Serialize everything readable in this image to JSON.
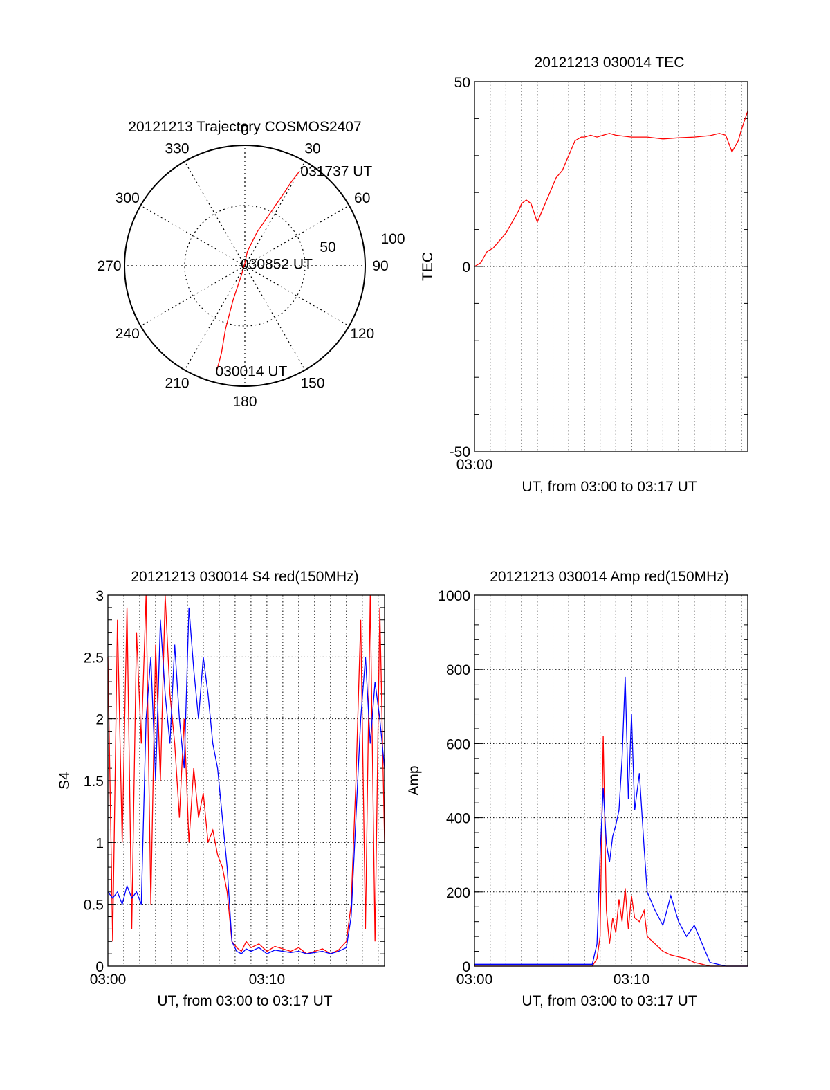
{
  "chart_data": [
    {
      "type": "polar",
      "title": "20121213 Trajectory COSMOS2407",
      "azimuth_labels": [
        "0",
        "30",
        "60",
        "90",
        "120",
        "150",
        "180",
        "210",
        "240",
        "270",
        "300",
        "330"
      ],
      "azimuth_values": [
        0,
        30,
        60,
        90,
        120,
        150,
        180,
        210,
        240,
        270,
        300,
        330
      ],
      "radial_labels": [
        "50",
        "100"
      ],
      "radial_values": [
        50,
        100
      ],
      "radial_max": 100,
      "trajectory_color": "#ff0000",
      "trajectory": [
        {
          "az": 30,
          "r": 90
        },
        {
          "az": 29,
          "r": 80
        },
        {
          "az": 28,
          "r": 65
        },
        {
          "az": 26,
          "r": 50
        },
        {
          "az": 20,
          "r": 30
        },
        {
          "az": 10,
          "r": 12
        },
        {
          "az": 0,
          "r": 2
        },
        {
          "az": 200,
          "r": 8
        },
        {
          "az": 199,
          "r": 30
        },
        {
          "az": 197,
          "r": 55
        },
        {
          "az": 195,
          "r": 75
        },
        {
          "az": 195,
          "r": 90
        }
      ],
      "time_labels": [
        {
          "text": "031737 UT",
          "az": 30,
          "r": 90
        },
        {
          "text": "030852 UT",
          "az": 0,
          "r": 2
        },
        {
          "text": "030014 UT",
          "az": 195,
          "r": 90
        }
      ]
    },
    {
      "type": "line",
      "title": "20121213 030014 TEC",
      "xlabel": "UT, from 03:00 to 03:17 UT",
      "ylabel": "TEC",
      "xlim": [
        0,
        17.4
      ],
      "ylim": [
        -50,
        50
      ],
      "yticks": [
        -50,
        0,
        50
      ],
      "ytick_labels": [
        "-50",
        "0",
        "50"
      ],
      "xtick_labels": [
        {
          "value": 0,
          "label": "03:00"
        }
      ],
      "series": [
        {
          "name": "TEC",
          "color": "#ff0000",
          "x": [
            0,
            0.4,
            0.8,
            1.2,
            1.6,
            2.0,
            2.4,
            2.8,
            3.0,
            3.3,
            3.6,
            4.0,
            4.4,
            4.8,
            5.2,
            5.6,
            6.0,
            6.4,
            6.8,
            7.0,
            7.4,
            7.8,
            8.2,
            8.6,
            9.0,
            10.0,
            11.0,
            12.0,
            13.0,
            14.0,
            15.0,
            15.6,
            16.0,
            16.4,
            16.8,
            17.0,
            17.4
          ],
          "y": [
            0,
            1,
            4,
            5,
            7,
            9,
            12,
            15,
            17,
            18,
            17,
            12,
            16,
            20,
            24,
            26,
            30,
            34,
            35,
            35,
            35.5,
            35,
            35.5,
            36,
            35.5,
            35,
            35,
            34.5,
            34.8,
            35,
            35.4,
            36,
            35.5,
            31,
            34,
            37,
            42
          ]
        }
      ]
    },
    {
      "type": "line",
      "title": "20121213 030014 S4 red(150MHz)",
      "xlabel": "UT, from 03:00 to 03:17 UT",
      "ylabel": "S4",
      "xlim": [
        0,
        17.4
      ],
      "ylim": [
        0,
        3
      ],
      "yticks": [
        0,
        0.5,
        1,
        1.5,
        2,
        2.5,
        3
      ],
      "ytick_labels": [
        "0",
        "0.5",
        "1",
        "1.5",
        "2",
        "2.5",
        "3"
      ],
      "xtick_labels": [
        {
          "value": 0,
          "label": "03:00"
        },
        {
          "value": 10,
          "label": "03:10"
        }
      ],
      "series": [
        {
          "name": "red(150MHz)",
          "color": "#ff0000",
          "x": [
            0,
            0.3,
            0.6,
            0.9,
            1.2,
            1.5,
            1.8,
            2.1,
            2.4,
            2.7,
            3.0,
            3.3,
            3.6,
            3.9,
            4.2,
            4.5,
            4.8,
            5.1,
            5.4,
            5.7,
            6.0,
            6.3,
            6.6,
            6.9,
            7.2,
            7.5,
            7.8,
            8.1,
            8.4,
            8.7,
            9.0,
            9.5,
            10.0,
            10.5,
            11.0,
            11.5,
            12.0,
            12.5,
            13.0,
            13.5,
            14.0,
            14.5,
            15.0,
            15.3,
            15.6,
            15.9,
            16.2,
            16.5,
            16.8,
            17.1,
            17.4
          ],
          "y": [
            2.5,
            0.2,
            2.8,
            1.0,
            2.9,
            0.3,
            2.7,
            1.8,
            3.0,
            0.5,
            2.6,
            1.5,
            3.0,
            2.2,
            1.8,
            1.2,
            2.0,
            1.0,
            1.6,
            1.2,
            1.4,
            1.0,
            1.1,
            0.9,
            0.8,
            0.6,
            0.2,
            0.15,
            0.12,
            0.2,
            0.15,
            0.18,
            0.12,
            0.16,
            0.14,
            0.12,
            0.15,
            0.1,
            0.12,
            0.14,
            0.1,
            0.13,
            0.2,
            0.5,
            1.5,
            2.8,
            0.3,
            3.0,
            0.2,
            2.9,
            1.0
          ]
        },
        {
          "name": "blue",
          "color": "#0000ff",
          "x": [
            0,
            0.3,
            0.6,
            0.9,
            1.2,
            1.5,
            1.8,
            2.1,
            2.4,
            2.7,
            3.0,
            3.3,
            3.6,
            3.9,
            4.2,
            4.5,
            4.8,
            5.1,
            5.4,
            5.7,
            6.0,
            6.3,
            6.6,
            6.9,
            7.2,
            7.5,
            7.8,
            8.1,
            8.4,
            8.7,
            9.0,
            9.5,
            10.0,
            10.5,
            11.0,
            11.5,
            12.0,
            12.5,
            13.0,
            13.5,
            14.0,
            14.5,
            15.0,
            15.3,
            15.6,
            15.9,
            16.2,
            16.5,
            16.8,
            17.1,
            17.4
          ],
          "y": [
            0.6,
            0.55,
            0.6,
            0.5,
            0.65,
            0.55,
            0.6,
            0.5,
            2.0,
            2.5,
            1.5,
            2.8,
            2.2,
            1.8,
            2.6,
            2.0,
            1.6,
            2.9,
            2.4,
            2.0,
            2.5,
            2.2,
            1.8,
            1.6,
            1.2,
            0.8,
            0.2,
            0.12,
            0.1,
            0.14,
            0.12,
            0.15,
            0.1,
            0.13,
            0.12,
            0.11,
            0.12,
            0.1,
            0.11,
            0.12,
            0.1,
            0.12,
            0.15,
            0.4,
            1.2,
            2.0,
            2.5,
            1.8,
            2.3,
            2.0,
            1.6
          ]
        }
      ]
    },
    {
      "type": "line",
      "title": "20121213 030014 Amp red(150MHz)",
      "xlabel": "UT, from 03:00 to 03:17 UT",
      "ylabel": "Amp",
      "xlim": [
        0,
        17.4
      ],
      "ylim": [
        0,
        1000
      ],
      "yticks": [
        0,
        200,
        400,
        600,
        800,
        1000
      ],
      "ytick_labels": [
        "0",
        "200",
        "400",
        "600",
        "800",
        "1000"
      ],
      "xtick_labels": [
        {
          "value": 0,
          "label": "03:00"
        },
        {
          "value": 10,
          "label": "03:10"
        }
      ],
      "series": [
        {
          "name": "red(150MHz)",
          "color": "#ff0000",
          "x": [
            0,
            2,
            4,
            6,
            7.5,
            7.8,
            8.0,
            8.2,
            8.4,
            8.6,
            8.8,
            9.0,
            9.2,
            9.4,
            9.6,
            9.8,
            10.0,
            10.2,
            10.5,
            10.8,
            11.0,
            11.5,
            12.0,
            12.5,
            13.0,
            13.5,
            14.0,
            14.5,
            15.0,
            16.0,
            17.4
          ],
          "y": [
            0,
            0,
            0,
            0,
            0,
            20,
            80,
            620,
            150,
            60,
            130,
            90,
            180,
            120,
            210,
            100,
            190,
            130,
            120,
            150,
            80,
            60,
            40,
            30,
            25,
            20,
            10,
            5,
            0,
            0,
            0
          ]
        },
        {
          "name": "blue",
          "color": "#0000ff",
          "x": [
            0,
            2,
            4,
            6,
            7.5,
            7.8,
            8.0,
            8.2,
            8.4,
            8.6,
            8.8,
            9.0,
            9.2,
            9.4,
            9.6,
            9.8,
            10.0,
            10.2,
            10.5,
            10.8,
            11.0,
            11.5,
            12.0,
            12.5,
            13.0,
            13.5,
            14.0,
            14.5,
            15.0,
            16.0,
            17.4
          ],
          "y": [
            5,
            5,
            5,
            5,
            5,
            60,
            300,
            480,
            330,
            280,
            350,
            380,
            420,
            560,
            780,
            450,
            680,
            420,
            520,
            320,
            200,
            150,
            110,
            190,
            120,
            80,
            110,
            60,
            10,
            0,
            0
          ]
        }
      ]
    }
  ]
}
